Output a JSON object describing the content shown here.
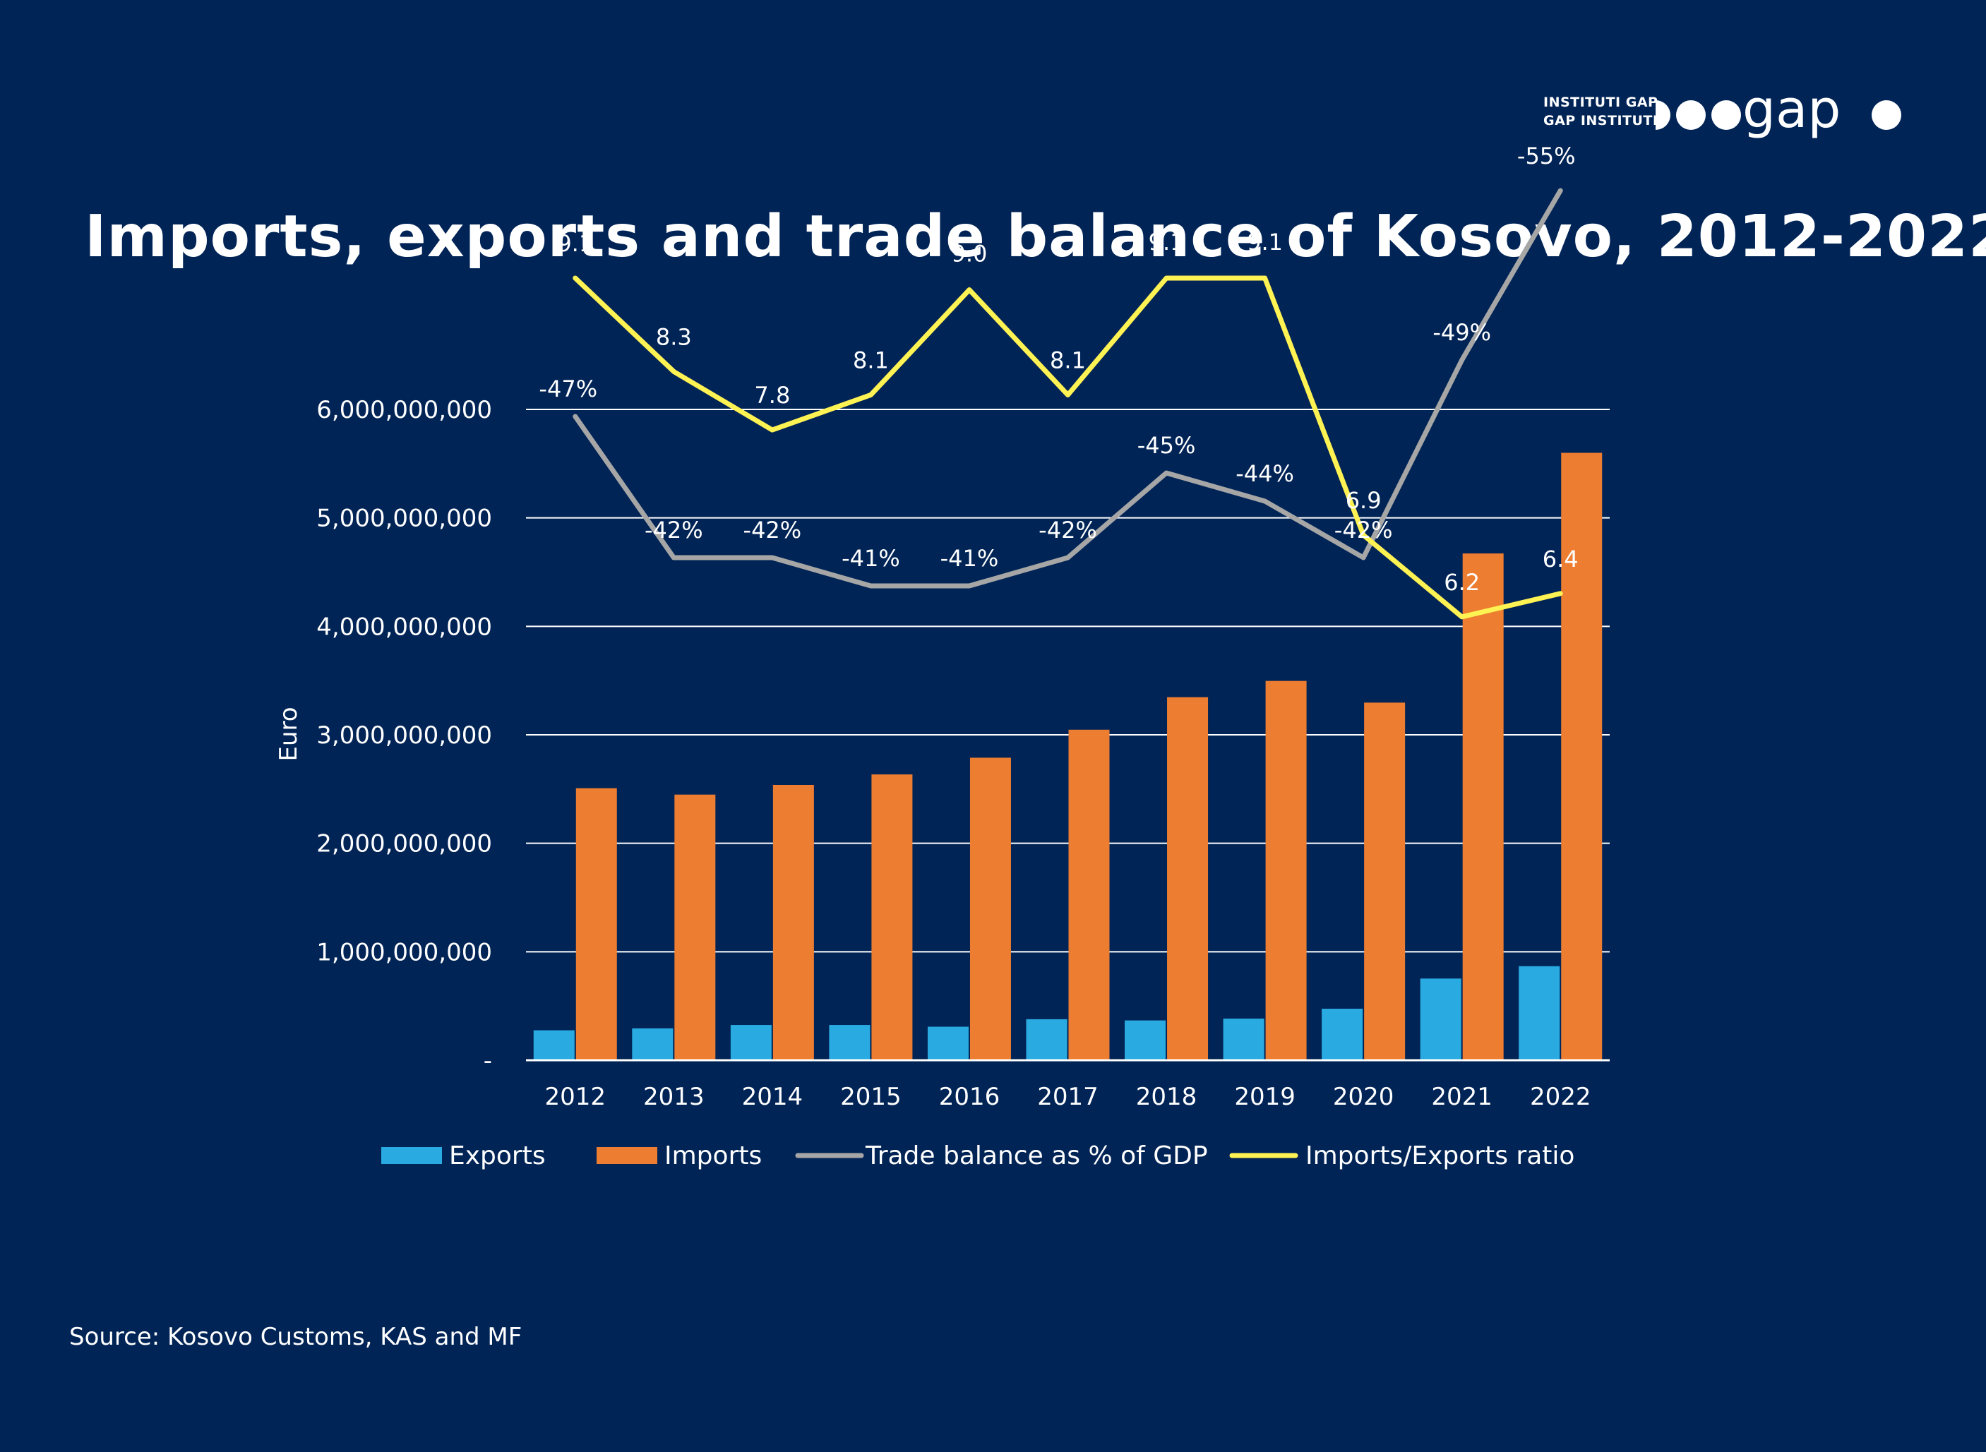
{
  "logo": {
    "line1": "INSTITUTI GAP",
    "line2": "GAP INSTITUTE",
    "wordmark": "gap"
  },
  "colors": {
    "background": "#012456",
    "exports": "#29ABE2",
    "imports": "#ED7D31",
    "trade_balance": "#A6A6A6",
    "ratio": "#FFF253"
  },
  "chart_data": {
    "type": "bar",
    "title": "Imports, exports and trade balance of Kosovo, 2012-2022",
    "ylabel": "Euro",
    "ylim": [
      0,
      6000000000
    ],
    "yticks": [
      0,
      1000000000,
      2000000000,
      3000000000,
      4000000000,
      5000000000,
      6000000000
    ],
    "ytick_labels": [
      "-",
      "1,000,000,000",
      "2,000,000,000",
      "3,000,000,000",
      "4,000,000,000",
      "5,000,000,000",
      "6,000,000,000"
    ],
    "grid": true,
    "legend_position": "bottom",
    "categories": [
      "2012",
      "2013",
      "2014",
      "2015",
      "2016",
      "2017",
      "2018",
      "2019",
      "2020",
      "2021",
      "2022"
    ],
    "series": [
      {
        "name": "Exports",
        "type": "bar",
        "values": [
          276000000,
          294000000,
          325000000,
          325000000,
          309000000,
          378000000,
          367000000,
          384000000,
          475000000,
          753000000,
          867000000
        ]
      },
      {
        "name": "Imports",
        "type": "bar",
        "values": [
          2508000000,
          2449000000,
          2538000000,
          2635000000,
          2789000000,
          3047000000,
          3347000000,
          3497000000,
          3297000000,
          4672000000,
          5600000000
        ]
      },
      {
        "name": "Trade balance as % of GDP",
        "type": "line",
        "values": [
          -47,
          -42,
          -42,
          -41,
          -41,
          -42,
          -45,
          -44,
          -42,
          -49,
          -55
        ],
        "labels": [
          "-47%",
          "-42%",
          "-42%",
          "-41%",
          "-41%",
          "-42%",
          "-45%",
          "-44%",
          "-42%",
          "-49%",
          "-55%"
        ]
      },
      {
        "name": "Imports/Exports ratio",
        "type": "line",
        "values": [
          9.1,
          8.3,
          7.8,
          8.1,
          9.0,
          8.1,
          9.1,
          9.1,
          6.9,
          6.2,
          6.4
        ],
        "labels": [
          "9.1",
          "8.3",
          "7.8",
          "8.1",
          "9.0",
          "8.1",
          "9.1",
          "9.1",
          "6.9",
          "6.2",
          "6.4"
        ]
      }
    ],
    "legend": [
      "Exports",
      "Imports",
      "Trade balance as % of GDP",
      "Imports/Exports ratio"
    ]
  },
  "source": "Source: Kosovo Customs, KAS and MF"
}
